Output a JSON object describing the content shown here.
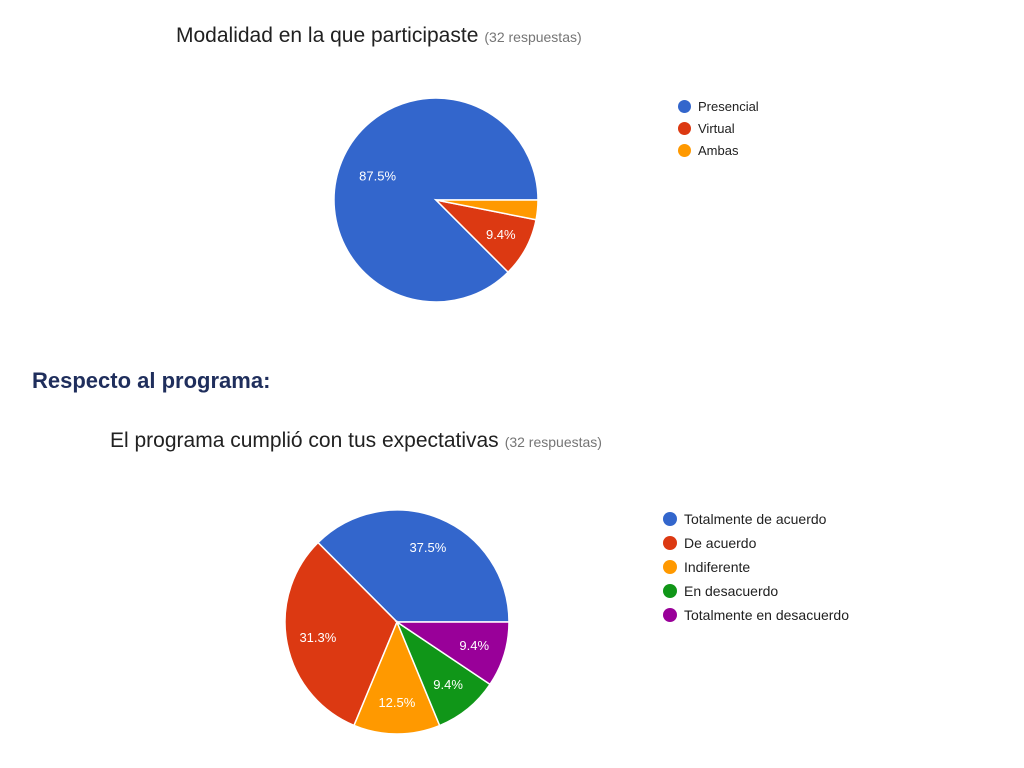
{
  "charts": [
    {
      "title": "Modalidad en la que participaste",
      "response_count": "(32 respuestas)"
    },
    {
      "title": "El programa cumplió con tus expectativas",
      "response_count": "(32 respuestas)"
    }
  ],
  "section": {
    "heading": "Respecto al programa:"
  },
  "chart_data": [
    {
      "type": "pie",
      "title": "Modalidad en la que participaste",
      "subtitle": "(32 respuestas)",
      "categories": [
        "Presencial",
        "Virtual",
        "Ambas"
      ],
      "values": [
        87.5,
        9.4,
        3.1
      ],
      "labels": [
        "87.5%",
        "9.4%",
        ""
      ],
      "colors": [
        "#3366cc",
        "#dc3912",
        "#ff9900"
      ],
      "legend": "right"
    },
    {
      "type": "pie",
      "title": "El programa cumplió con tus expectativas",
      "subtitle": "(32 respuestas)",
      "categories": [
        "Totalmente de acuerdo",
        "De acuerdo",
        "Indiferente",
        "En desacuerdo",
        "Totalmente en desacuerdo"
      ],
      "values": [
        37.5,
        31.3,
        12.5,
        9.4,
        9.4
      ],
      "labels": [
        "37.5%",
        "31.3%",
        "12.5%",
        "9.4%",
        "9.4%"
      ],
      "colors": [
        "#3366cc",
        "#dc3912",
        "#ff9900",
        "#109618",
        "#990099"
      ],
      "legend": "right"
    }
  ]
}
